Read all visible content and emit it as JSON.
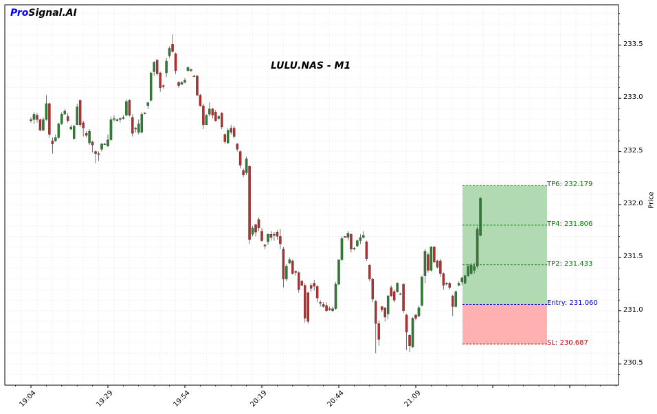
{
  "brand": {
    "pro": "Pro",
    "rest": "Signal.AI",
    "pro_color": "#0000ff"
  },
  "chart_data": {
    "type": "candlestick",
    "title": "LULU.NAS - M1",
    "ylabel": "Price",
    "ylim": [
      230.3,
      233.88
    ],
    "grid": true,
    "y_ticks": [
      "230.5",
      "231.0",
      "231.5",
      "232.0",
      "232.5",
      "233.0",
      "233.5"
    ],
    "x_tick_labels": [
      "19:04",
      "19:29",
      "19:54",
      "20:19",
      "20:44",
      "21:09"
    ],
    "colors": {
      "up": "#2e7d32",
      "down": "#b03030",
      "tp_zone": "#b2dab2",
      "sl_zone": "#ffb0b0",
      "tp_line": "#008000",
      "entry_line": "#0000cc",
      "sl_line": "#cc0000"
    },
    "levels": [
      {
        "name": "TP6",
        "label": "TP6: 232.179",
        "value": 232.179,
        "color": "#008000"
      },
      {
        "name": "TP4",
        "label": "TP4: 231.806",
        "value": 231.806,
        "color": "#008000"
      },
      {
        "name": "TP2",
        "label": "TP2: 231.433",
        "value": 231.433,
        "color": "#008000"
      },
      {
        "name": "Entry",
        "label": "Entry: 231.060",
        "value": 231.06,
        "color": "#0000cc"
      },
      {
        "name": "SL",
        "label": "SL: 230.687",
        "value": 230.687,
        "color": "#cc0000"
      }
    ],
    "candles": [
      [
        232.79,
        232.82,
        232.77,
        232.8
      ],
      [
        232.8,
        232.87,
        232.76,
        232.85
      ],
      [
        232.84,
        232.86,
        232.77,
        232.8
      ],
      [
        232.8,
        232.81,
        232.69,
        232.7
      ],
      [
        232.7,
        232.82,
        232.69,
        232.8
      ],
      [
        232.8,
        233.03,
        232.79,
        232.95
      ],
      [
        232.95,
        232.96,
        232.63,
        232.66
      ],
      [
        232.6,
        232.63,
        232.48,
        232.57
      ],
      [
        232.6,
        232.66,
        232.59,
        232.63
      ],
      [
        232.63,
        232.77,
        232.62,
        232.76
      ],
      [
        232.76,
        232.87,
        232.75,
        232.85
      ],
      [
        232.85,
        232.9,
        232.86,
        232.88
      ],
      [
        232.83,
        232.86,
        232.77,
        232.79
      ],
      [
        232.71,
        232.75,
        232.7,
        232.73
      ],
      [
        232.62,
        232.75,
        232.61,
        232.74
      ],
      [
        232.75,
        232.95,
        232.76,
        232.92
      ],
      [
        232.98,
        232.99,
        232.73,
        232.75
      ],
      [
        232.77,
        232.79,
        232.64,
        232.72
      ],
      [
        232.67,
        232.69,
        232.63,
        232.65
      ],
      [
        232.58,
        232.71,
        232.56,
        232.69
      ],
      [
        232.59,
        232.6,
        232.49,
        232.56
      ],
      [
        232.5,
        232.51,
        232.39,
        232.48
      ],
      [
        232.48,
        232.5,
        232.41,
        232.47
      ],
      [
        232.52,
        232.58,
        232.5,
        232.57
      ],
      [
        232.57,
        232.58,
        232.56,
        232.57
      ],
      [
        232.55,
        232.66,
        232.54,
        232.61
      ],
      [
        232.61,
        232.83,
        232.6,
        232.8
      ],
      [
        232.8,
        232.84,
        232.78,
        232.81
      ],
      [
        232.79,
        232.81,
        232.78,
        232.8
      ],
      [
        232.8,
        232.82,
        232.77,
        232.81
      ],
      [
        232.81,
        232.84,
        232.8,
        232.82
      ],
      [
        232.84,
        232.99,
        232.83,
        232.97
      ],
      [
        232.98,
        232.99,
        232.83,
        232.84
      ],
      [
        232.82,
        232.85,
        232.64,
        232.67
      ],
      [
        232.71,
        232.73,
        232.68,
        232.72
      ],
      [
        232.68,
        232.8,
        232.66,
        232.76
      ],
      [
        232.68,
        232.87,
        232.67,
        232.85
      ],
      [
        232.86,
        232.87,
        232.85,
        232.86
      ],
      [
        232.93,
        232.96,
        232.9,
        232.96
      ],
      [
        232.98,
        233.25,
        232.97,
        233.24
      ],
      [
        233.25,
        233.35,
        233.21,
        233.34
      ],
      [
        233.36,
        233.37,
        233.21,
        233.23
      ],
      [
        233.24,
        233.25,
        233.06,
        233.1
      ],
      [
        233.12,
        233.13,
        233.09,
        233.11
      ],
      [
        233.24,
        233.38,
        233.2,
        233.35
      ],
      [
        233.4,
        233.49,
        233.38,
        233.47
      ],
      [
        233.51,
        233.6,
        233.43,
        233.44
      ],
      [
        233.42,
        233.43,
        233.23,
        233.26
      ],
      [
        233.15,
        233.16,
        233.1,
        233.12
      ],
      [
        233.13,
        233.16,
        233.13,
        233.15
      ],
      [
        233.15,
        233.19,
        233.14,
        233.17
      ],
      [
        233.26,
        233.3,
        233.25,
        233.29
      ],
      [
        233.27,
        233.28,
        233.25,
        233.26
      ],
      [
        233.21,
        233.22,
        233.2,
        233.21
      ],
      [
        233.21,
        233.22,
        233.02,
        233.03
      ],
      [
        233.03,
        233.04,
        232.92,
        232.93
      ],
      [
        232.93,
        232.95,
        232.71,
        232.75
      ],
      [
        232.75,
        232.85,
        232.76,
        232.84
      ],
      [
        232.85,
        232.96,
        232.83,
        232.9
      ],
      [
        232.9,
        232.91,
        232.81,
        232.84
      ],
      [
        232.87,
        232.89,
        232.78,
        232.79
      ],
      [
        232.81,
        232.84,
        232.8,
        232.83
      ],
      [
        232.86,
        232.87,
        232.71,
        232.73
      ],
      [
        232.66,
        232.67,
        232.57,
        232.59
      ],
      [
        232.58,
        232.72,
        232.57,
        232.7
      ],
      [
        232.72,
        232.75,
        232.66,
        232.68
      ],
      [
        232.72,
        232.74,
        232.62,
        232.64
      ],
      [
        232.57,
        232.58,
        232.5,
        232.52
      ],
      [
        232.5,
        232.51,
        232.34,
        232.37
      ],
      [
        232.32,
        232.34,
        232.26,
        232.28
      ],
      [
        232.3,
        232.45,
        232.28,
        232.43
      ],
      [
        232.36,
        232.37,
        231.63,
        231.67
      ],
      [
        231.72,
        231.8,
        231.7,
        231.78
      ],
      [
        231.81,
        231.82,
        231.7,
        231.74
      ],
      [
        231.86,
        231.88,
        231.75,
        231.78
      ],
      [
        231.75,
        231.78,
        231.65,
        231.66
      ],
      [
        231.62,
        231.63,
        231.58,
        231.61
      ],
      [
        231.65,
        231.73,
        231.62,
        231.72
      ],
      [
        231.72,
        231.75,
        231.66,
        231.69
      ],
      [
        231.71,
        231.74,
        231.66,
        231.72
      ],
      [
        231.74,
        231.76,
        231.67,
        231.7
      ],
      [
        231.7,
        231.77,
        231.58,
        231.63
      ],
      [
        231.58,
        231.6,
        231.22,
        231.3
      ],
      [
        231.3,
        231.44,
        231.28,
        231.42
      ],
      [
        231.45,
        231.5,
        231.44,
        231.48
      ],
      [
        231.47,
        231.48,
        231.34,
        231.35
      ],
      [
        231.37,
        231.38,
        231.33,
        231.36
      ],
      [
        231.36,
        231.37,
        231.17,
        231.2
      ],
      [
        231.28,
        231.29,
        231.23,
        231.24
      ],
      [
        231.24,
        231.26,
        230.89,
        230.93
      ],
      [
        231.17,
        231.18,
        230.88,
        230.9
      ],
      [
        231.24,
        231.26,
        231.18,
        231.21
      ],
      [
        231.26,
        231.29,
        231.19,
        231.23
      ],
      [
        231.23,
        231.24,
        231.08,
        231.12
      ],
      [
        231.08,
        231.1,
        231.04,
        231.07
      ],
      [
        231.06,
        231.08,
        231.03,
        231.04
      ],
      [
        231.05,
        231.08,
        230.99,
        231.0
      ],
      [
        231.02,
        231.04,
        231.0,
        231.01
      ],
      [
        231.0,
        231.04,
        230.99,
        231.02
      ],
      [
        231.02,
        231.27,
        231.01,
        231.25
      ],
      [
        231.25,
        231.48,
        231.24,
        231.48
      ],
      [
        231.48,
        231.7,
        231.47,
        231.68
      ],
      [
        231.7,
        231.7,
        231.69,
        231.69
      ],
      [
        231.69,
        231.75,
        231.66,
        231.73
      ],
      [
        231.72,
        231.73,
        231.55,
        231.58
      ],
      [
        231.58,
        231.6,
        231.57,
        231.59
      ],
      [
        231.61,
        231.67,
        231.6,
        231.66
      ],
      [
        231.66,
        231.72,
        231.63,
        231.69
      ],
      [
        231.69,
        231.75,
        231.68,
        231.71
      ],
      [
        231.65,
        231.66,
        231.47,
        231.49
      ],
      [
        231.43,
        231.44,
        231.28,
        231.3
      ],
      [
        231.3,
        231.31,
        231.08,
        231.11
      ],
      [
        231.09,
        231.1,
        230.6,
        230.88
      ],
      [
        230.88,
        230.91,
        230.67,
        230.73
      ],
      [
        231.04,
        231.04,
        230.99,
        231.01
      ],
      [
        231.03,
        231.03,
        230.9,
        230.94
      ],
      [
        230.97,
        231.15,
        230.92,
        231.14
      ],
      [
        231.22,
        231.24,
        231.13,
        231.14
      ],
      [
        231.18,
        231.2,
        231.08,
        231.1
      ],
      [
        231.18,
        231.27,
        231.17,
        231.26
      ],
      [
        231.16,
        231.17,
        231.15,
        231.16
      ],
      [
        231.25,
        231.26,
        230.98,
        231.0
      ],
      [
        230.96,
        230.97,
        230.63,
        230.8
      ],
      [
        230.77,
        230.78,
        230.61,
        230.67
      ],
      [
        230.66,
        230.94,
        230.65,
        230.93
      ],
      [
        230.96,
        230.97,
        230.91,
        230.93
      ],
      [
        230.95,
        231.05,
        230.94,
        231.03
      ],
      [
        231.05,
        231.33,
        231.04,
        231.32
      ],
      [
        231.33,
        231.58,
        231.26,
        231.56
      ],
      [
        231.53,
        231.55,
        231.36,
        231.38
      ],
      [
        231.38,
        231.61,
        231.37,
        231.6
      ],
      [
        231.6,
        231.61,
        231.45,
        231.46
      ],
      [
        231.47,
        231.48,
        231.4,
        231.41
      ],
      [
        231.47,
        231.49,
        231.32,
        231.35
      ],
      [
        231.35,
        231.36,
        231.2,
        231.24
      ],
      [
        231.25,
        231.27,
        231.24,
        231.26
      ],
      [
        231.26,
        231.27,
        231.2,
        231.22
      ],
      [
        231.14,
        231.15,
        230.95,
        231.04
      ],
      [
        231.04,
        231.19,
        231.03,
        231.18
      ],
      [
        231.24,
        231.28,
        231.23,
        231.26
      ],
      [
        231.27,
        231.32,
        231.24,
        231.31
      ],
      [
        231.26,
        231.34,
        231.25,
        231.33
      ],
      [
        231.33,
        231.44,
        231.32,
        231.42
      ],
      [
        231.35,
        231.45,
        231.34,
        231.43
      ],
      [
        231.38,
        231.45,
        231.35,
        231.42
      ],
      [
        231.42,
        231.79,
        231.4,
        231.77
      ],
      [
        231.71,
        232.07,
        231.7,
        232.06
      ]
    ]
  }
}
